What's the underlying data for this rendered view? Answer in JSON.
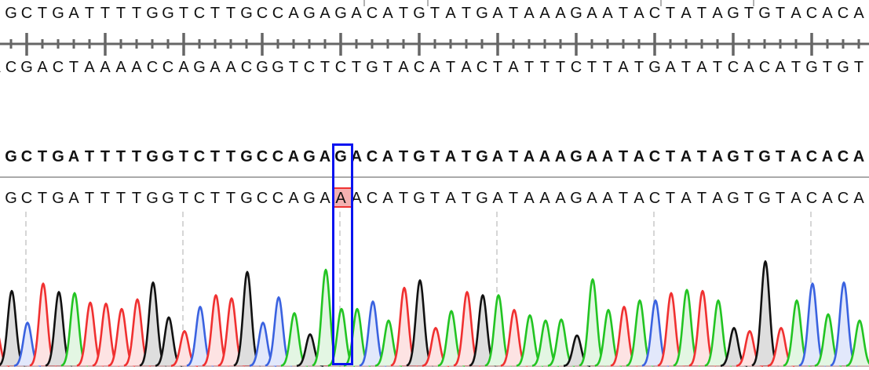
{
  "reference": {
    "forward": "TGCTGATTTTGGTCTTGCCAGAGACATGTATGATAAAGAATACTATAGTGTACACA",
    "complement": "ACGACTAAAACCAGAACGGTCTCTGTACATACTATTTCTTATGATATCACATGTGT"
  },
  "alignment": {
    "consensus": "TGCTGATTTTGGTCTTGCCAGAGACATGTATGATAAAGAATACTATAGTGTACACA",
    "read": "TGCTGATTTTGGTCTTGCCAGAAACATGTATGATAAAGAATACTATAGTGTACACA",
    "selected_index": 22,
    "mismatch_index": 22
  },
  "trace": {
    "peak_heights": [
      0.35,
      0.71,
      0.41,
      0.78,
      0.7,
      0.69,
      0.6,
      0.59,
      0.54,
      0.63,
      0.79,
      0.46,
      0.33,
      0.56,
      0.67,
      0.64,
      0.89,
      0.41,
      0.65,
      0.5,
      0.3,
      0.91,
      0.54,
      0.54,
      0.61,
      0.43,
      0.74,
      0.81,
      0.36,
      0.52,
      0.7,
      0.67,
      0.67,
      0.53,
      0.48,
      0.43,
      0.44,
      0.29,
      0.82,
      0.53,
      0.56,
      0.62,
      0.62,
      0.69,
      0.72,
      0.71,
      0.62,
      0.36,
      0.33,
      0.99,
      0.36,
      0.62,
      0.78,
      0.49,
      0.79,
      0.43
    ],
    "colors": {
      "A": "#22c422",
      "C": "#3a62e0",
      "G": "#111111",
      "T": "#f03030"
    },
    "fills": {
      "A": "#e3f6e3",
      "C": "#e2e8fb",
      "G": "#dedede",
      "T": "#fde3e3"
    }
  },
  "colors": {
    "selection": "#0a14f0",
    "mismatch": "#f4b1b1",
    "ruler": "#666666",
    "guides": "#c8c8c8"
  }
}
